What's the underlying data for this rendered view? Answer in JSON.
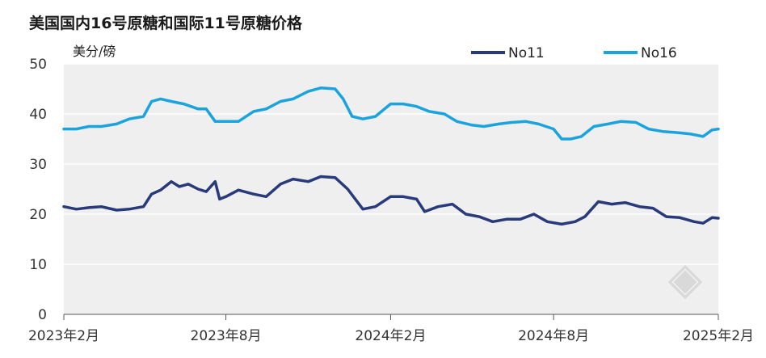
{
  "chart_data": {
    "type": "line",
    "title": "美国国内16号原糖和国际11号原糖价格",
    "ylabel": "美分/磅",
    "xlabel": "",
    "ylim": [
      0,
      50
    ],
    "yticks": [
      0,
      10,
      20,
      30,
      40,
      50
    ],
    "x_range": [
      "2023-02-01",
      "2025-02-01"
    ],
    "xticks": [
      {
        "date": "2023-02-01",
        "label": "2023年2月"
      },
      {
        "date": "2023-08-01",
        "label": "2023年8月"
      },
      {
        "date": "2024-02-01",
        "label": "2024年2月"
      },
      {
        "date": "2024-08-01",
        "label": "2024年8月"
      },
      {
        "date": "2025-02-01",
        "label": "2025年2月"
      }
    ],
    "grid": "horizontal",
    "plot_background": "#efefef",
    "legend_position": "top-right",
    "series": [
      {
        "name": "No11",
        "color": "#283a7a",
        "points": [
          [
            "2023-02-01",
            21.5
          ],
          [
            "2023-02-15",
            21.0
          ],
          [
            "2023-03-01",
            21.3
          ],
          [
            "2023-03-15",
            21.5
          ],
          [
            "2023-04-01",
            20.8
          ],
          [
            "2023-04-15",
            21.0
          ],
          [
            "2023-05-01",
            21.5
          ],
          [
            "2023-05-10",
            24.0
          ],
          [
            "2023-05-20",
            24.8
          ],
          [
            "2023-06-01",
            26.5
          ],
          [
            "2023-06-10",
            25.5
          ],
          [
            "2023-06-20",
            26.0
          ],
          [
            "2023-07-01",
            25.0
          ],
          [
            "2023-07-10",
            24.5
          ],
          [
            "2023-07-20",
            26.5
          ],
          [
            "2023-07-25",
            23.0
          ],
          [
            "2023-08-01",
            23.5
          ],
          [
            "2023-08-15",
            24.8
          ],
          [
            "2023-09-01",
            24.0
          ],
          [
            "2023-09-15",
            23.5
          ],
          [
            "2023-10-01",
            26.0
          ],
          [
            "2023-10-15",
            27.0
          ],
          [
            "2023-11-01",
            26.5
          ],
          [
            "2023-11-15",
            27.5
          ],
          [
            "2023-12-01",
            27.3
          ],
          [
            "2023-12-15",
            25.0
          ],
          [
            "2024-01-01",
            21.0
          ],
          [
            "2024-01-15",
            21.5
          ],
          [
            "2024-02-01",
            23.5
          ],
          [
            "2024-02-15",
            23.5
          ],
          [
            "2024-03-01",
            23.0
          ],
          [
            "2024-03-10",
            20.5
          ],
          [
            "2024-03-25",
            21.5
          ],
          [
            "2024-04-10",
            22.0
          ],
          [
            "2024-04-25",
            20.0
          ],
          [
            "2024-05-10",
            19.5
          ],
          [
            "2024-05-25",
            18.5
          ],
          [
            "2024-06-10",
            19.0
          ],
          [
            "2024-06-25",
            19.0
          ],
          [
            "2024-07-10",
            20.0
          ],
          [
            "2024-07-25",
            18.5
          ],
          [
            "2024-08-10",
            18.0
          ],
          [
            "2024-08-25",
            18.5
          ],
          [
            "2024-09-05",
            19.5
          ],
          [
            "2024-09-20",
            22.5
          ],
          [
            "2024-10-05",
            22.0
          ],
          [
            "2024-10-20",
            22.3
          ],
          [
            "2024-11-05",
            21.5
          ],
          [
            "2024-11-20",
            21.2
          ],
          [
            "2024-12-05",
            19.5
          ],
          [
            "2024-12-20",
            19.3
          ],
          [
            "2025-01-05",
            18.5
          ],
          [
            "2025-01-15",
            18.2
          ],
          [
            "2025-01-25",
            19.3
          ],
          [
            "2025-02-01",
            19.2
          ]
        ]
      },
      {
        "name": "No16",
        "color": "#1aa3dc",
        "points": [
          [
            "2023-02-01",
            37.0
          ],
          [
            "2023-02-15",
            37.0
          ],
          [
            "2023-03-01",
            37.5
          ],
          [
            "2023-03-15",
            37.5
          ],
          [
            "2023-04-01",
            38.0
          ],
          [
            "2023-04-15",
            39.0
          ],
          [
            "2023-05-01",
            39.5
          ],
          [
            "2023-05-10",
            42.5
          ],
          [
            "2023-05-20",
            43.0
          ],
          [
            "2023-06-01",
            42.5
          ],
          [
            "2023-06-15",
            42.0
          ],
          [
            "2023-07-01",
            41.0
          ],
          [
            "2023-07-10",
            41.0
          ],
          [
            "2023-07-20",
            38.5
          ],
          [
            "2023-08-01",
            38.5
          ],
          [
            "2023-08-15",
            38.5
          ],
          [
            "2023-09-01",
            40.5
          ],
          [
            "2023-09-15",
            41.0
          ],
          [
            "2023-10-01",
            42.5
          ],
          [
            "2023-10-15",
            43.0
          ],
          [
            "2023-11-01",
            44.5
          ],
          [
            "2023-11-15",
            45.2
          ],
          [
            "2023-12-01",
            45.0
          ],
          [
            "2023-12-10",
            43.0
          ],
          [
            "2023-12-20",
            39.5
          ],
          [
            "2024-01-01",
            39.0
          ],
          [
            "2024-01-15",
            39.5
          ],
          [
            "2024-02-01",
            42.0
          ],
          [
            "2024-02-15",
            42.0
          ],
          [
            "2024-03-01",
            41.5
          ],
          [
            "2024-03-15",
            40.5
          ],
          [
            "2024-04-01",
            40.0
          ],
          [
            "2024-04-15",
            38.5
          ],
          [
            "2024-05-01",
            37.8
          ],
          [
            "2024-05-15",
            37.5
          ],
          [
            "2024-06-01",
            38.0
          ],
          [
            "2024-06-15",
            38.3
          ],
          [
            "2024-07-01",
            38.5
          ],
          [
            "2024-07-15",
            38.0
          ],
          [
            "2024-08-01",
            37.0
          ],
          [
            "2024-08-10",
            35.0
          ],
          [
            "2024-08-20",
            35.0
          ],
          [
            "2024-09-01",
            35.5
          ],
          [
            "2024-09-15",
            37.5
          ],
          [
            "2024-10-01",
            38.0
          ],
          [
            "2024-10-15",
            38.5
          ],
          [
            "2024-11-01",
            38.3
          ],
          [
            "2024-11-15",
            37.0
          ],
          [
            "2024-12-01",
            36.5
          ],
          [
            "2024-12-15",
            36.3
          ],
          [
            "2025-01-01",
            36.0
          ],
          [
            "2025-01-15",
            35.5
          ],
          [
            "2025-01-25",
            36.8
          ],
          [
            "2025-02-01",
            37.0
          ]
        ]
      }
    ]
  }
}
